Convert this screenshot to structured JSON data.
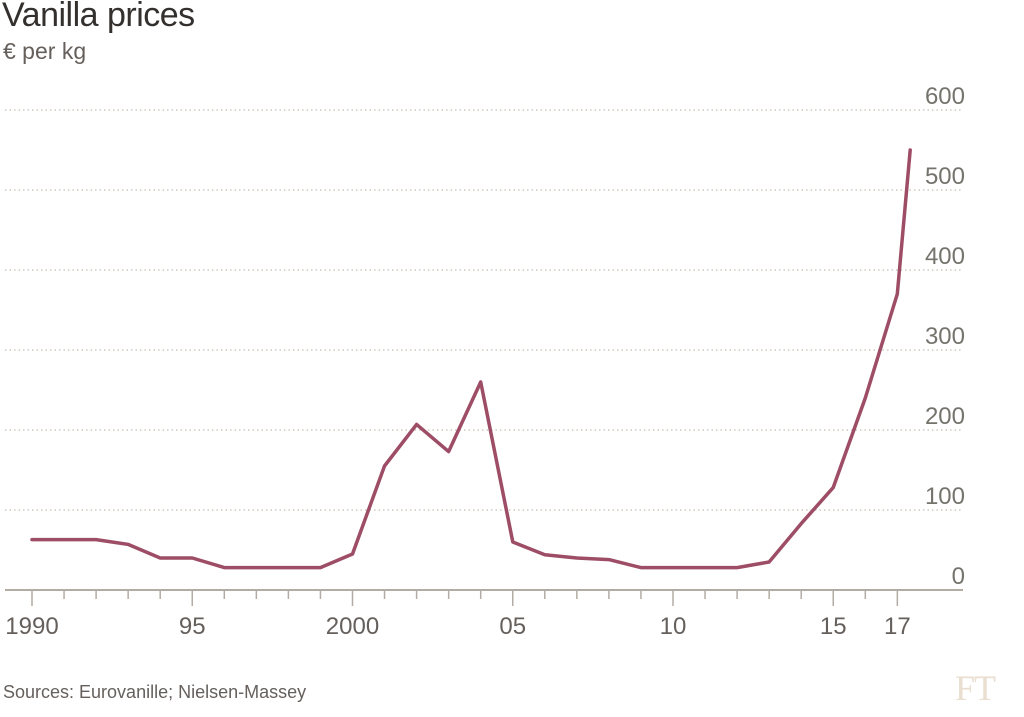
{
  "title": "Vanilla prices",
  "subtitle": "€ per kg",
  "source": "Sources: Eurovanille; Nielsen-Massey",
  "logo": "FT",
  "colors": {
    "line": "#9e4d66",
    "grid": "#cfc8c0",
    "axis": "#b3aca4",
    "text": "#66605c"
  },
  "chart_data": {
    "type": "line",
    "title": "Vanilla prices",
    "ylabel": "€ per kg",
    "xlim": [
      1990,
      2018
    ],
    "ylim": [
      0,
      600
    ],
    "y_ticks": [
      0,
      100,
      200,
      300,
      400,
      500,
      600
    ],
    "y_tick_labels": [
      "0",
      "100",
      "200",
      "300",
      "400",
      "500",
      "600"
    ],
    "x_ticks": [
      1990,
      1995,
      2000,
      2005,
      2010,
      2015,
      2017
    ],
    "x_tick_labels": [
      "1990",
      "95",
      "2000",
      "05",
      "10",
      "15",
      "17"
    ],
    "grid": true,
    "series": [
      {
        "x": [
          1990,
          1991,
          1992,
          1993,
          1994,
          1995,
          1996,
          1997,
          1998,
          1999,
          2000,
          2001,
          2002,
          2003,
          2004,
          2005,
          2006,
          2007,
          2008,
          2009,
          2010,
          2011,
          2012,
          2013,
          2014,
          2015,
          2016,
          2017,
          2017.4
        ],
        "y": [
          63,
          63,
          63,
          57,
          40,
          40,
          28,
          28,
          28,
          28,
          45,
          155,
          207,
          173,
          260,
          60,
          44,
          40,
          38,
          28,
          28,
          28,
          28,
          35,
          83,
          128,
          240,
          370,
          550
        ]
      }
    ]
  }
}
